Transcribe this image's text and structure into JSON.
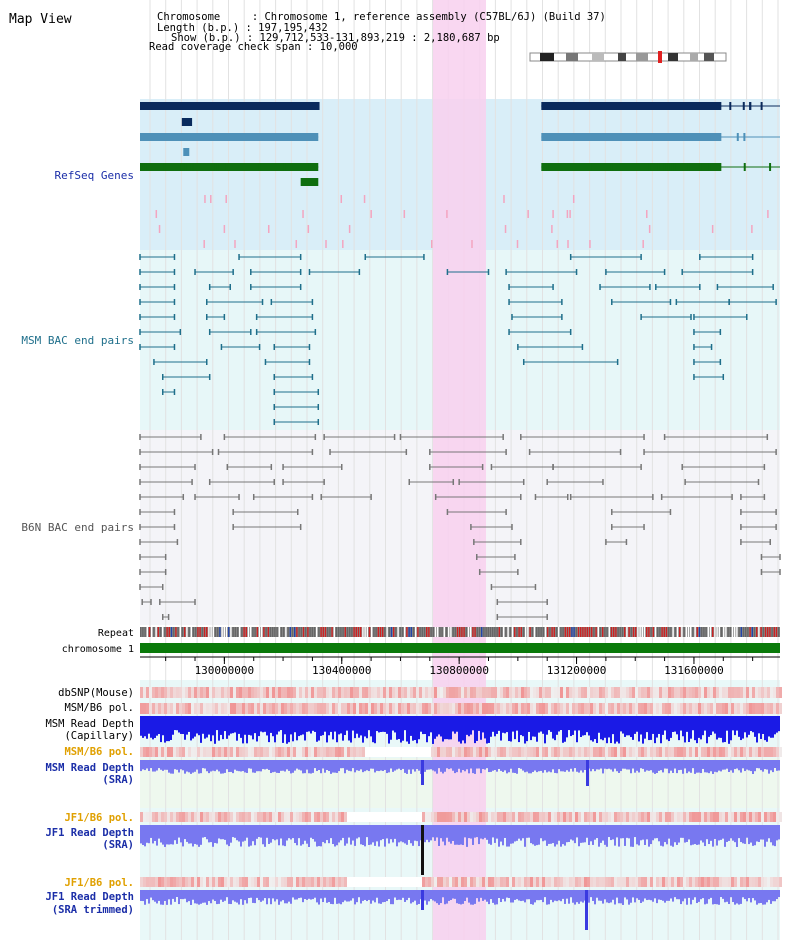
{
  "title": "Map View",
  "header": {
    "lines": [
      "Chromosome     : Chromosome 1, reference assembly (C57BL/6J) (Build 37)",
      "Length (b.p.) : 197,195,432",
      "Show (b.p.) : 129,712,533-131,893,219 : 2,180,687 bp",
      "Read coverage check span : 10,000"
    ]
  },
  "view": {
    "start": 129712533,
    "end": 131893219
  },
  "colors": {
    "refseq_bg": "#d9eef8",
    "msm_bac_bg": "#e7f7f8",
    "b6n_bac_bg": "#f4f4f8",
    "highlight": "#f8d0ee",
    "navy": "#0a2a5c",
    "steel": "#4e90b8",
    "green": "#0f6e0f",
    "teal": "#1f6f8b",
    "gray": "#777777",
    "pink": "#f3a5c0",
    "snp_red": "#e03030",
    "depth_blue": "#1a1ae6",
    "depth_light": "#7878f0",
    "orange_label": "#e0a000",
    "blue_label": "#1b2ea8"
  },
  "tracks": {
    "refseq": "RefSeq Genes",
    "msm_bac": "MSM BAC end pairs",
    "b6n_bac": "B6N BAC end pairs",
    "repeat": "Repeat",
    "chromosome": "chromosome 1",
    "dbsnp": "dbSNP(Mouse)",
    "msm_b6_pol_1": "MSM/B6 pol.",
    "msm_depth_cap_1": "MSM Read Depth",
    "msm_depth_cap_2": "(Capillary)",
    "msm_b6_pol_2": "MSM/B6 pol.",
    "msm_depth_sra_1": "MSM Read Depth",
    "msm_depth_sra_2": "(SRA)",
    "jf1_pol_1": "JF1/B6 pol.",
    "jf1_depth_sra_1": "JF1 Read Depth",
    "jf1_depth_sra_2": "(SRA)",
    "jf1_pol_2": "JF1/B6 pol.",
    "jf1_depth_trim_1": "JF1 Read Depth",
    "jf1_depth_trim_2": "(SRA trimmed)"
  },
  "axis": {
    "ticks": [
      {
        "value": 130000000,
        "label": "130000000"
      },
      {
        "value": 130400000,
        "label": "130400000"
      },
      {
        "value": 130800000,
        "label": "130800000"
      },
      {
        "value": 131200000,
        "label": "131200000"
      },
      {
        "value": 131600000,
        "label": "131600000"
      }
    ]
  },
  "refseq_genes": [
    {
      "lane": 0,
      "color": "navy",
      "start": 129712533,
      "end": 130320000
    },
    {
      "lane": 0,
      "color": "navy",
      "start": 131080000,
      "end": 131893219
    },
    {
      "lane": 1,
      "color": "navy",
      "start": 129855000,
      "end": 129890000
    },
    {
      "lane": 2,
      "color": "steel",
      "start": 129712533,
      "end": 130320000
    },
    {
      "lane": 2,
      "color": "steel",
      "start": 131080000,
      "end": 131893219
    },
    {
      "lane": 3,
      "color": "steel",
      "start": 129860000,
      "end": 129880000
    },
    {
      "lane": 4,
      "color": "green",
      "start": 129712533,
      "end": 130320000
    },
    {
      "lane": 4,
      "color": "green",
      "start": 131080000,
      "end": 131893219
    },
    {
      "lane": 5,
      "color": "green",
      "start": 130260000,
      "end": 130320000
    }
  ],
  "msm_bac_pairs": [
    {
      "lane": 0,
      "start": 129712533,
      "end": 129830000
    },
    {
      "lane": 0,
      "start": 130050000,
      "end": 130260000
    },
    {
      "lane": 0,
      "start": 130480000,
      "end": 130680000
    },
    {
      "lane": 0,
      "start": 131180000,
      "end": 131420000
    },
    {
      "lane": 0,
      "start": 131620000,
      "end": 131800000
    },
    {
      "lane": 1,
      "start": 129712533,
      "end": 129830000
    },
    {
      "lane": 1,
      "start": 129900000,
      "end": 130030000
    },
    {
      "lane": 1,
      "start": 130090000,
      "end": 130260000
    },
    {
      "lane": 1,
      "start": 130290000,
      "end": 130460000
    },
    {
      "lane": 1,
      "start": 130760000,
      "end": 130900000
    },
    {
      "lane": 1,
      "start": 130960000,
      "end": 131200000
    },
    {
      "lane": 1,
      "start": 131300000,
      "end": 131500000
    },
    {
      "lane": 1,
      "start": 131560000,
      "end": 131800000
    },
    {
      "lane": 2,
      "start": 129712533,
      "end": 129830000
    },
    {
      "lane": 2,
      "start": 129950000,
      "end": 130020000
    },
    {
      "lane": 2,
      "start": 130090000,
      "end": 130260000
    },
    {
      "lane": 2,
      "start": 130970000,
      "end": 131120000
    },
    {
      "lane": 2,
      "start": 131280000,
      "end": 131450000
    },
    {
      "lane": 2,
      "start": 131470000,
      "end": 131620000
    },
    {
      "lane": 2,
      "start": 131680000,
      "end": 131870000
    },
    {
      "lane": 3,
      "start": 129712533,
      "end": 129830000
    },
    {
      "lane": 3,
      "start": 129940000,
      "end": 130130000
    },
    {
      "lane": 3,
      "start": 130160000,
      "end": 130300000
    },
    {
      "lane": 3,
      "start": 130970000,
      "end": 131150000
    },
    {
      "lane": 3,
      "start": 131320000,
      "end": 131520000
    },
    {
      "lane": 3,
      "start": 131540000,
      "end": 131720000
    },
    {
      "lane": 3,
      "start": 131720000,
      "end": 131880000
    },
    {
      "lane": 4,
      "start": 129712533,
      "end": 129830000
    },
    {
      "lane": 4,
      "start": 129940000,
      "end": 130000000
    },
    {
      "lane": 4,
      "start": 130110000,
      "end": 130300000
    },
    {
      "lane": 4,
      "start": 130980000,
      "end": 131150000
    },
    {
      "lane": 4,
      "start": 131420000,
      "end": 131590000
    },
    {
      "lane": 4,
      "start": 131600000,
      "end": 131780000
    },
    {
      "lane": 5,
      "start": 129712533,
      "end": 129850000
    },
    {
      "lane": 5,
      "start": 129950000,
      "end": 130090000
    },
    {
      "lane": 5,
      "start": 130110000,
      "end": 130310000
    },
    {
      "lane": 5,
      "start": 130970000,
      "end": 131180000
    },
    {
      "lane": 5,
      "start": 131600000,
      "end": 131690000
    },
    {
      "lane": 6,
      "start": 129712533,
      "end": 129830000
    },
    {
      "lane": 6,
      "start": 129990000,
      "end": 130120000
    },
    {
      "lane": 6,
      "start": 130170000,
      "end": 130290000
    },
    {
      "lane": 6,
      "start": 131000000,
      "end": 131220000
    },
    {
      "lane": 6,
      "start": 131600000,
      "end": 131660000
    },
    {
      "lane": 7,
      "start": 129760000,
      "end": 129940000
    },
    {
      "lane": 7,
      "start": 130140000,
      "end": 130290000
    },
    {
      "lane": 7,
      "start": 131020000,
      "end": 131340000
    },
    {
      "lane": 7,
      "start": 131600000,
      "end": 131690000
    },
    {
      "lane": 8,
      "start": 129790000,
      "end": 129950000
    },
    {
      "lane": 8,
      "start": 130170000,
      "end": 130300000
    },
    {
      "lane": 8,
      "start": 131600000,
      "end": 131700000
    },
    {
      "lane": 9,
      "start": 129790000,
      "end": 129830000
    },
    {
      "lane": 9,
      "start": 130170000,
      "end": 130320000
    },
    {
      "lane": 10,
      "start": 130170000,
      "end": 130320000
    },
    {
      "lane": 11,
      "start": 130170000,
      "end": 130320000
    }
  ],
  "b6n_bac_pairs": [
    {
      "lane": 0,
      "start": 129712533,
      "end": 129920000
    },
    {
      "lane": 0,
      "start": 130000000,
      "end": 130310000
    },
    {
      "lane": 0,
      "start": 130340000,
      "end": 130580000
    },
    {
      "lane": 0,
      "start": 130600000,
      "end": 130950000
    },
    {
      "lane": 0,
      "start": 131010000,
      "end": 131430000
    },
    {
      "lane": 0,
      "start": 131500000,
      "end": 131850000
    },
    {
      "lane": 1,
      "start": 129712533,
      "end": 129960000
    },
    {
      "lane": 1,
      "start": 129980000,
      "end": 130300000
    },
    {
      "lane": 1,
      "start": 130360000,
      "end": 130620000
    },
    {
      "lane": 1,
      "start": 130700000,
      "end": 130960000
    },
    {
      "lane": 1,
      "start": 131040000,
      "end": 131350000
    },
    {
      "lane": 1,
      "start": 131430000,
      "end": 131880000
    },
    {
      "lane": 2,
      "start": 129712533,
      "end": 129900000
    },
    {
      "lane": 2,
      "start": 130010000,
      "end": 130160000
    },
    {
      "lane": 2,
      "start": 130200000,
      "end": 130400000
    },
    {
      "lane": 2,
      "start": 130700000,
      "end": 130880000
    },
    {
      "lane": 2,
      "start": 130910000,
      "end": 131120000
    },
    {
      "lane": 2,
      "start": 131120000,
      "end": 131420000
    },
    {
      "lane": 2,
      "start": 131560000,
      "end": 131840000
    },
    {
      "lane": 3,
      "start": 129712533,
      "end": 129890000
    },
    {
      "lane": 3,
      "start": 129950000,
      "end": 130170000
    },
    {
      "lane": 3,
      "start": 130200000,
      "end": 130340000
    },
    {
      "lane": 3,
      "start": 130630000,
      "end": 130780000
    },
    {
      "lane": 3,
      "start": 130800000,
      "end": 131020000
    },
    {
      "lane": 3,
      "start": 131100000,
      "end": 131290000
    },
    {
      "lane": 3,
      "start": 131570000,
      "end": 131820000
    },
    {
      "lane": 4,
      "start": 129712533,
      "end": 129860000
    },
    {
      "lane": 4,
      "start": 129900000,
      "end": 130050000
    },
    {
      "lane": 4,
      "start": 130100000,
      "end": 130300000
    },
    {
      "lane": 4,
      "start": 130330000,
      "end": 130500000
    },
    {
      "lane": 4,
      "start": 130720000,
      "end": 131010000
    },
    {
      "lane": 4,
      "start": 131060000,
      "end": 131170000
    },
    {
      "lane": 4,
      "start": 131180000,
      "end": 131460000
    },
    {
      "lane": 4,
      "start": 131490000,
      "end": 131730000
    },
    {
      "lane": 4,
      "start": 131760000,
      "end": 131840000
    },
    {
      "lane": 5,
      "start": 129712533,
      "end": 129830000
    },
    {
      "lane": 5,
      "start": 130030000,
      "end": 130250000
    },
    {
      "lane": 5,
      "start": 130760000,
      "end": 130960000
    },
    {
      "lane": 5,
      "start": 131320000,
      "end": 131520000
    },
    {
      "lane": 5,
      "start": 131760000,
      "end": 131880000
    },
    {
      "lane": 6,
      "start": 129712533,
      "end": 129830000
    },
    {
      "lane": 6,
      "start": 130030000,
      "end": 130260000
    },
    {
      "lane": 6,
      "start": 130840000,
      "end": 130980000
    },
    {
      "lane": 6,
      "start": 131320000,
      "end": 131430000
    },
    {
      "lane": 6,
      "start": 131760000,
      "end": 131880000
    },
    {
      "lane": 7,
      "start": 129712533,
      "end": 129840000
    },
    {
      "lane": 7,
      "start": 130850000,
      "end": 131010000
    },
    {
      "lane": 7,
      "start": 131300000,
      "end": 131370000
    },
    {
      "lane": 7,
      "start": 131760000,
      "end": 131860000
    },
    {
      "lane": 8,
      "start": 129712533,
      "end": 129800000
    },
    {
      "lane": 8,
      "start": 130860000,
      "end": 130990000
    },
    {
      "lane": 8,
      "start": 131830000,
      "end": 131893219
    },
    {
      "lane": 9,
      "start": 129712533,
      "end": 129800000
    },
    {
      "lane": 9,
      "start": 130870000,
      "end": 131000000
    },
    {
      "lane": 9,
      "start": 131830000,
      "end": 131893219
    },
    {
      "lane": 10,
      "start": 129712533,
      "end": 129790000
    },
    {
      "lane": 10,
      "start": 130910000,
      "end": 131060000
    },
    {
      "lane": 11,
      "start": 129720000,
      "end": 129750000
    },
    {
      "lane": 11,
      "start": 129780000,
      "end": 129900000
    },
    {
      "lane": 11,
      "start": 130930000,
      "end": 131100000
    },
    {
      "lane": 12,
      "start": 129790000,
      "end": 129810000
    },
    {
      "lane": 12,
      "start": 130930000,
      "end": 131100000
    }
  ]
}
